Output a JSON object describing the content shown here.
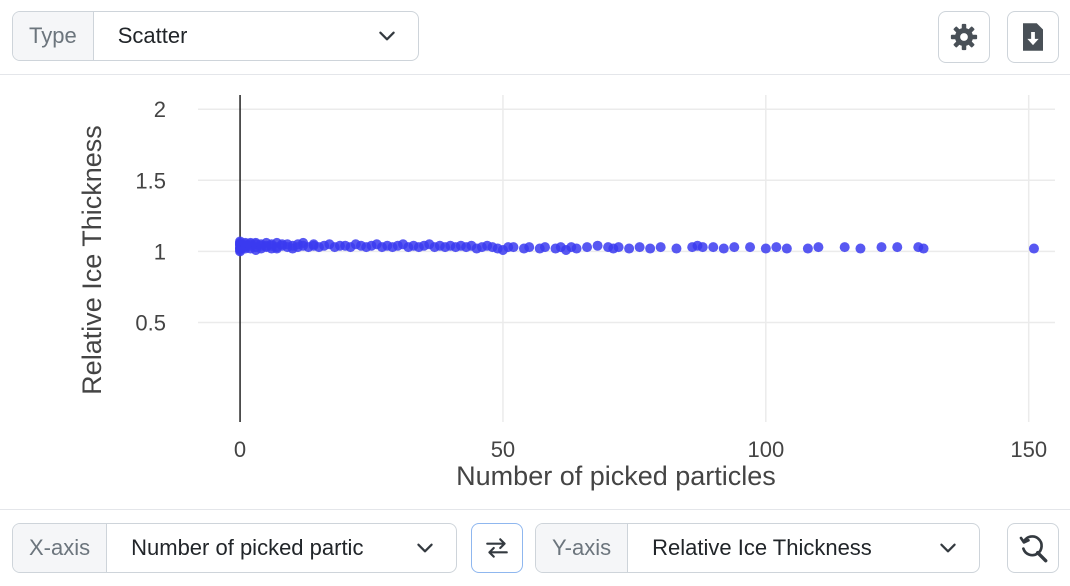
{
  "toolbar": {
    "type_label": "Type",
    "type_value": "Scatter",
    "settings_icon": "gear-icon",
    "download_icon": "file-download-icon"
  },
  "axis_controls": {
    "x_label": "X-axis",
    "x_value": "Number of picked particles",
    "swap_icon": "swap-arrows-icon",
    "y_label": "Y-axis",
    "y_value": "Relative Ice Thickness",
    "zoom_icon": "zoom-reset-icon"
  },
  "chart_data": {
    "type": "scatter",
    "xlabel": "Number of picked particles",
    "ylabel": "Relative Ice Thickness",
    "xlim": [
      -8,
      155
    ],
    "ylim": [
      -0.2,
      2.1
    ],
    "xticks": [
      0,
      50,
      100,
      150
    ],
    "yticks": [
      0.5,
      1,
      1.5,
      2
    ],
    "ytick_labels": [
      "0.5",
      "1",
      "1.5",
      "2"
    ],
    "grid": true,
    "color": "#3b3bf0",
    "series": [
      {
        "x": [
          0,
          0,
          0,
          0,
          0,
          0,
          0,
          0,
          0,
          0,
          1,
          1,
          1,
          1,
          1,
          2,
          2,
          2,
          2,
          3,
          3,
          3,
          3,
          4,
          4,
          4,
          5,
          5,
          5,
          6,
          6,
          6,
          7,
          7,
          7,
          8,
          8,
          9,
          9,
          10,
          10,
          11,
          11,
          12,
          12,
          13,
          14,
          14,
          15,
          16,
          17,
          18,
          19,
          20,
          21,
          22,
          23,
          24,
          25,
          26,
          27,
          28,
          29,
          30,
          31,
          32,
          33,
          34,
          35,
          36,
          37,
          38,
          39,
          40,
          41,
          42,
          43,
          44,
          45,
          46,
          47,
          48,
          49,
          50,
          51,
          52,
          54,
          55,
          57,
          58,
          60,
          61,
          62,
          63,
          64,
          66,
          68,
          70,
          71,
          72,
          74,
          76,
          78,
          80,
          83,
          86,
          87,
          88,
          90,
          92,
          94,
          97,
          100,
          102,
          104,
          108,
          110,
          115,
          118,
          122,
          125,
          129,
          130,
          151
        ],
        "y": [
          1.0,
          1.02,
          1.04,
          1.05,
          1.06,
          1.03,
          1.01,
          1.07,
          1.05,
          1.02,
          1.04,
          1.06,
          1.02,
          1.05,
          1.03,
          1.05,
          1.02,
          1.06,
          1.04,
          1.03,
          1.05,
          1.01,
          1.06,
          1.04,
          1.02,
          1.05,
          1.03,
          1.06,
          1.04,
          1.02,
          1.05,
          1.04,
          1.03,
          1.06,
          1.02,
          1.04,
          1.05,
          1.03,
          1.05,
          1.04,
          1.02,
          1.05,
          1.03,
          1.06,
          1.04,
          1.03,
          1.05,
          1.04,
          1.03,
          1.04,
          1.05,
          1.03,
          1.04,
          1.04,
          1.03,
          1.05,
          1.04,
          1.03,
          1.04,
          1.05,
          1.03,
          1.04,
          1.03,
          1.04,
          1.05,
          1.03,
          1.04,
          1.03,
          1.04,
          1.05,
          1.03,
          1.04,
          1.03,
          1.04,
          1.03,
          1.04,
          1.03,
          1.04,
          1.02,
          1.03,
          1.04,
          1.03,
          1.02,
          1.01,
          1.03,
          1.03,
          1.02,
          1.03,
          1.02,
          1.03,
          1.02,
          1.03,
          1.01,
          1.03,
          1.02,
          1.03,
          1.04,
          1.03,
          1.02,
          1.03,
          1.02,
          1.03,
          1.02,
          1.03,
          1.02,
          1.03,
          1.04,
          1.03,
          1.03,
          1.02,
          1.03,
          1.03,
          1.02,
          1.03,
          1.02,
          1.02,
          1.03,
          1.03,
          1.02,
          1.03,
          1.03,
          1.03,
          1.02,
          1.02
        ]
      }
    ]
  }
}
